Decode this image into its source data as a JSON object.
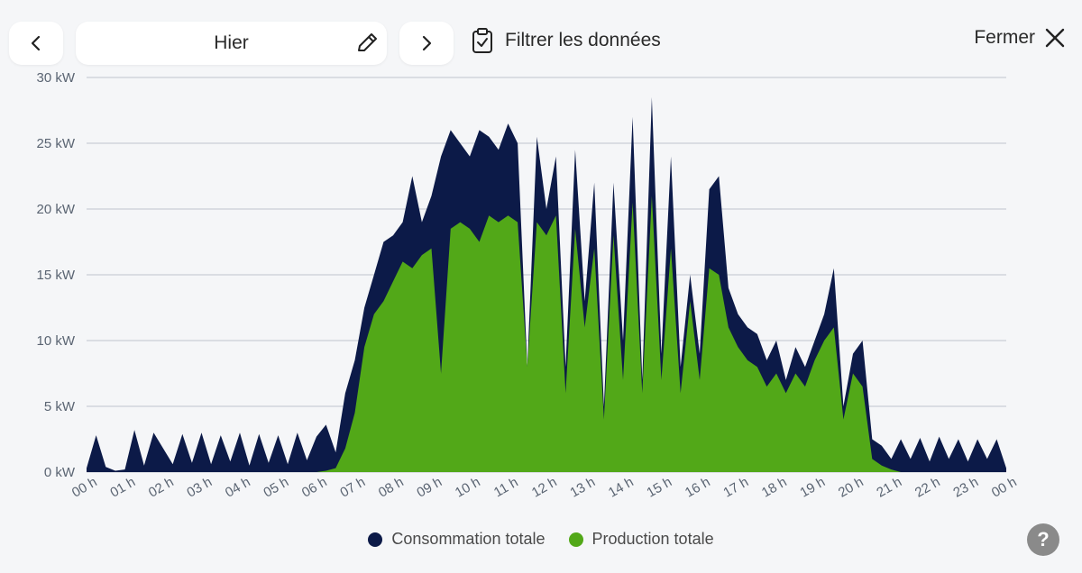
{
  "header": {
    "date_label": "Hier",
    "filter_label": "Filtrer les données",
    "close_label": "Fermer",
    "help_label": "?"
  },
  "icons": {
    "prev": "chevron-left-icon",
    "next": "chevron-right-icon",
    "edit": "pencil-icon",
    "filter": "clipboard-check-icon",
    "close": "close-icon",
    "help": "question-icon"
  },
  "colors": {
    "consumption": "#0c1a48",
    "production": "#52a818",
    "grid": "#c9ced6",
    "background": "#f5f6f8"
  },
  "legend": [
    {
      "label": "Consommation totale",
      "color": "#0c1a48"
    },
    {
      "label": "Production totale",
      "color": "#52a818"
    }
  ],
  "chart_data": {
    "type": "area",
    "ylim": [
      0,
      30
    ],
    "y_ticks": [
      "0 kW",
      "5 kW",
      "10 kW",
      "15 kW",
      "20 kW",
      "25 kW",
      "30 kW"
    ],
    "x_ticks": [
      "00 h",
      "01 h",
      "02 h",
      "03 h",
      "04 h",
      "05 h",
      "06 h",
      "07 h",
      "08 h",
      "09 h",
      "10 h",
      "11 h",
      "12 h",
      "13 h",
      "14 h",
      "15 h",
      "16 h",
      "17 h",
      "18 h",
      "19 h",
      "20 h",
      "21 h",
      "22 h",
      "23 h",
      "00 h"
    ],
    "x_unit": "hour",
    "x": [
      0,
      0.25,
      0.5,
      0.75,
      1,
      1.25,
      1.5,
      1.75,
      2,
      2.25,
      2.5,
      2.75,
      3,
      3.25,
      3.5,
      3.75,
      4,
      4.25,
      4.5,
      4.75,
      5,
      5.25,
      5.5,
      5.75,
      6,
      6.25,
      6.5,
      6.75,
      7,
      7.25,
      7.5,
      7.75,
      8,
      8.25,
      8.5,
      8.75,
      9,
      9.25,
      9.5,
      9.75,
      10,
      10.25,
      10.5,
      10.75,
      11,
      11.25,
      11.5,
      11.75,
      12,
      12.25,
      12.5,
      12.75,
      13,
      13.25,
      13.5,
      13.75,
      14,
      14.25,
      14.5,
      14.75,
      15,
      15.25,
      15.5,
      15.75,
      16,
      16.25,
      16.5,
      16.75,
      17,
      17.25,
      17.5,
      17.75,
      18,
      18.25,
      18.5,
      18.75,
      19,
      19.25,
      19.5,
      19.75,
      20,
      20.25,
      20.5,
      20.75,
      21,
      21.25,
      21.5,
      21.75,
      22,
      22.25,
      22.5,
      22.75,
      23,
      23.25,
      23.5,
      23.75,
      24
    ],
    "series": [
      {
        "name": "Consommation totale",
        "values": [
          0.3,
          2.8,
          0.4,
          0.1,
          0.2,
          3.2,
          0.5,
          3.0,
          1.8,
          0.6,
          2.9,
          0.7,
          3.0,
          0.6,
          2.8,
          0.8,
          3.0,
          0.5,
          2.9,
          0.7,
          2.8,
          0.6,
          3.0,
          0.9,
          2.7,
          3.6,
          1.5,
          6.0,
          8.5,
          12.5,
          15.0,
          17.5,
          18.0,
          19.0,
          22.5,
          19.0,
          21.0,
          24.0,
          26.0,
          25.0,
          24.0,
          26.0,
          25.5,
          24.5,
          26.5,
          25.0,
          8.0,
          25.5,
          20.0,
          24.0,
          8.0,
          24.5,
          13.0,
          22.0,
          5.0,
          22.0,
          10.0,
          27.0,
          7.0,
          28.5,
          9.0,
          24.0,
          8.0,
          15.0,
          9.0,
          21.5,
          22.5,
          14.0,
          12.0,
          11.0,
          10.5,
          8.5,
          10.0,
          7.0,
          9.5,
          8.0,
          10.0,
          12.0,
          15.5,
          5.0,
          9.0,
          10.0,
          2.5,
          2.0,
          1.0,
          2.5,
          1.0,
          2.6,
          0.8,
          2.7,
          1.0,
          2.5,
          0.8,
          2.5,
          1.0,
          2.5,
          0.3
        ],
        "color": "#0c1a48"
      },
      {
        "name": "Production totale",
        "values": [
          0,
          0,
          0,
          0,
          0,
          0,
          0,
          0,
          0,
          0,
          0,
          0,
          0,
          0,
          0,
          0,
          0,
          0,
          0,
          0,
          0,
          0,
          0,
          0,
          0,
          0.1,
          0.3,
          1.8,
          4.5,
          9.5,
          12.0,
          13.0,
          14.5,
          16.0,
          15.5,
          16.5,
          17.0,
          7.5,
          18.5,
          19.0,
          18.5,
          17.5,
          19.5,
          19.0,
          19.5,
          19.0,
          8.0,
          19.0,
          18.0,
          19.5,
          6.0,
          18.5,
          11.0,
          17.0,
          4.0,
          18.0,
          7.0,
          20.5,
          6.0,
          21.0,
          7.0,
          17.0,
          6.0,
          13.0,
          7.0,
          15.5,
          15.0,
          11.0,
          9.5,
          8.5,
          8.0,
          6.5,
          7.5,
          6.0,
          7.5,
          6.5,
          8.5,
          10.0,
          11.0,
          4.0,
          7.5,
          6.5,
          1.0,
          0.5,
          0.2,
          0,
          0,
          0,
          0,
          0,
          0,
          0,
          0,
          0,
          0,
          0,
          0
        ],
        "color": "#52a818"
      }
    ]
  }
}
